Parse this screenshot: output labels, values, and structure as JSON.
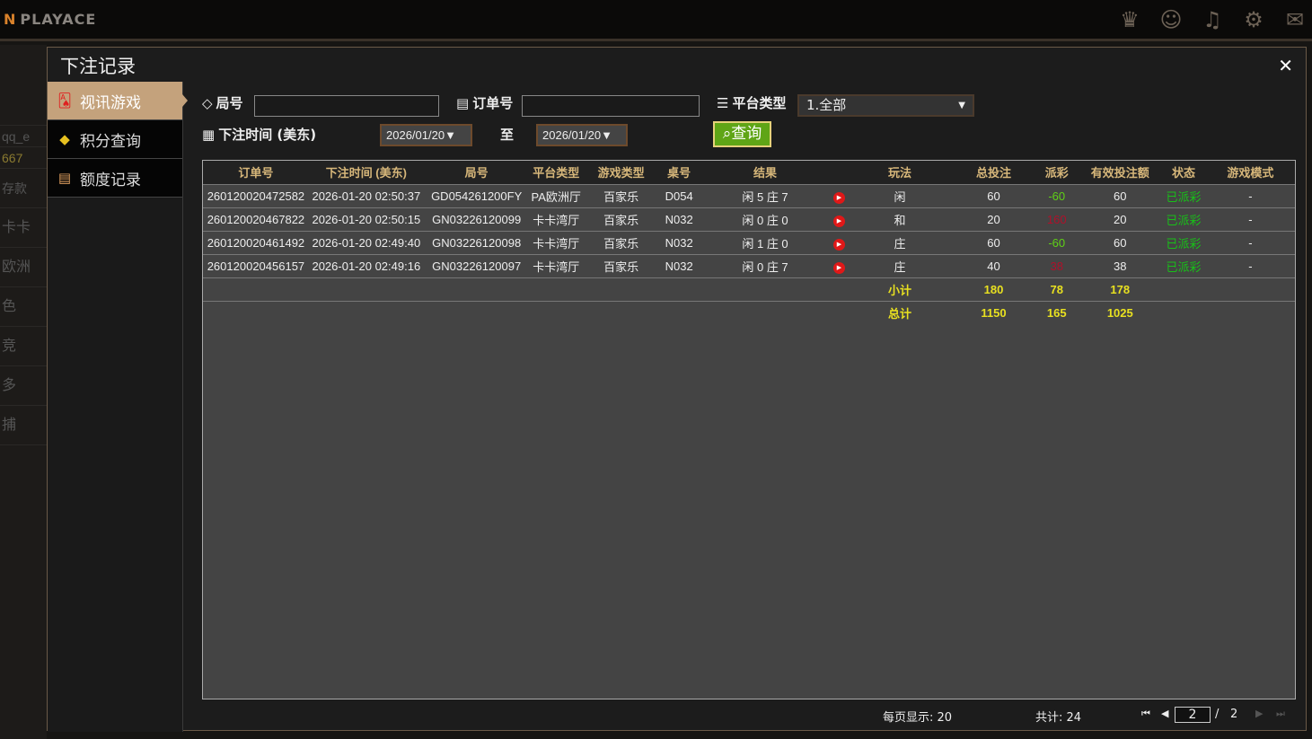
{
  "app": {
    "logo": "PLAYACE",
    "top_icons": [
      "vip-icon",
      "customer-service-icon",
      "music-icon",
      "gear-icon",
      "chat-icon"
    ]
  },
  "background_sidebar": [
    "qq_e",
    "667",
    "存款",
    "卡卡",
    "欧洲",
    "色",
    "竞",
    "多",
    "捕"
  ],
  "modal": {
    "title": "下注记录",
    "close": "✕"
  },
  "sidebar": {
    "items": [
      {
        "label": "视讯游戏",
        "icon": "playing-cards-icon",
        "active": true
      },
      {
        "label": "积分查询",
        "icon": "diamond-icon"
      },
      {
        "label": "额度记录",
        "icon": "document-icon"
      }
    ]
  },
  "filters": {
    "round_label": "局号",
    "round_value": "",
    "order_label": "订单号",
    "order_value": "",
    "platform_label": "平台类型",
    "platform_value": "1.全部",
    "time_label": "下注时间 (美东)",
    "date_from": "2026/01/20▼",
    "to_label": "至",
    "date_to": "2026/01/20▼",
    "query_button": "查询"
  },
  "table": {
    "headers": [
      "订单号",
      "下注时间 (美东)",
      "局号",
      "平台类型",
      "游戏类型",
      "桌号",
      "结果",
      "",
      "玩法",
      "总投注",
      "派彩",
      "有效投注额",
      "状态",
      "游戏模式"
    ],
    "rows": [
      [
        "260120020472582",
        "2026-01-20 02:50:37",
        "GD054261200FY",
        "PA欧洲厅",
        "百家乐",
        "D054",
        "闲 5 庄 7",
        "",
        "闲",
        "60",
        "-60",
        "60",
        "已派彩",
        "-"
      ],
      [
        "260120020467822",
        "2026-01-20 02:50:15",
        "GN03226120099",
        "卡卡湾厅",
        "百家乐",
        "N032",
        "闲 0 庄 0",
        "",
        "和",
        "20",
        "160",
        "20",
        "已派彩",
        "-"
      ],
      [
        "260120020461492",
        "2026-01-20 02:49:40",
        "GN03226120098",
        "卡卡湾厅",
        "百家乐",
        "N032",
        "闲 1 庄 0",
        "",
        "庄",
        "60",
        "-60",
        "60",
        "已派彩",
        "-"
      ],
      [
        "260120020456157",
        "2026-01-20 02:49:16",
        "GN03226120097",
        "卡卡湾厅",
        "百家乐",
        "N032",
        "闲 0 庄 7",
        "",
        "庄",
        "40",
        "38",
        "38",
        "已派彩",
        "-"
      ]
    ],
    "subtotal": {
      "label": "小计",
      "total_bet": "180",
      "payout": "78",
      "valid_bet": "178"
    },
    "total": {
      "label": "总计",
      "total_bet": "1150",
      "payout": "165",
      "valid_bet": "1025"
    },
    "colors": {
      "header": "#d7b77a",
      "loss": "#5fd016",
      "win": "#b0102a",
      "status": "#18c018",
      "sum": "#e8e020"
    }
  },
  "pagination": {
    "per_page": "每页显示: 20",
    "total": "共计: 24",
    "current_page": "2",
    "separator": "/",
    "total_pages": "2"
  }
}
